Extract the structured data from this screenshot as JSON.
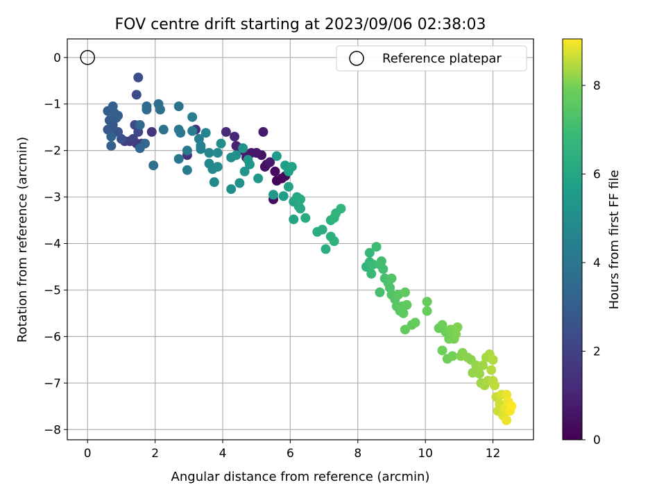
{
  "chart_data": {
    "type": "scatter",
    "title": "FOV centre drift starting at 2023/09/06 02:38:03",
    "xlabel": "Angular distance from reference (arcmin)",
    "ylabel": "Rotation from reference (arcmin)",
    "xlim": [
      -0.6,
      13.2
    ],
    "ylim": [
      -8.22,
      0.4
    ],
    "x_ticks": [
      0,
      2,
      4,
      6,
      8,
      10,
      12
    ],
    "y_ticks": [
      0,
      -1,
      -2,
      -3,
      -4,
      -5,
      -6,
      -7,
      -8
    ],
    "grid": true,
    "legend": {
      "placement": "top-right",
      "entries": [
        "Reference platepar"
      ]
    },
    "reference_point": {
      "x": 0,
      "y": 0
    },
    "colorbar": {
      "label": "Hours from first FF file",
      "colormap": "viridis",
      "range": [
        0,
        9.05
      ],
      "ticks": [
        0,
        2,
        4,
        6,
        8
      ]
    },
    "points": [
      {
        "x": 5.75,
        "y": -2.6,
        "h": 0.1
      },
      {
        "x": 5.6,
        "y": -2.65,
        "h": 0.15
      },
      {
        "x": 5.85,
        "y": -2.55,
        "h": 0.2
      },
      {
        "x": 5.5,
        "y": -3.05,
        "h": 0.3
      },
      {
        "x": 5.55,
        "y": -2.45,
        "h": 0.35
      },
      {
        "x": 5.3,
        "y": -2.3,
        "h": 0.4
      },
      {
        "x": 5.25,
        "y": -2.35,
        "h": 0.45
      },
      {
        "x": 5.15,
        "y": -2.1,
        "h": 0.5
      },
      {
        "x": 4.7,
        "y": -2.15,
        "h": 0.55
      },
      {
        "x": 4.85,
        "y": -2.05,
        "h": 0.6
      },
      {
        "x": 5.0,
        "y": -2.05,
        "h": 0.65
      },
      {
        "x": 5.4,
        "y": -2.25,
        "h": 0.7
      },
      {
        "x": 5.2,
        "y": -1.6,
        "h": 0.75
      },
      {
        "x": 4.6,
        "y": -2.0,
        "h": 0.8
      },
      {
        "x": 4.4,
        "y": -1.9,
        "h": 0.9
      },
      {
        "x": 4.5,
        "y": -1.95,
        "h": 1.0
      },
      {
        "x": 4.35,
        "y": -1.7,
        "h": 1.1
      },
      {
        "x": 4.1,
        "y": -1.6,
        "h": 1.2
      },
      {
        "x": 2.95,
        "y": -2.1,
        "h": 1.3
      },
      {
        "x": 3.2,
        "y": -1.55,
        "h": 1.4
      },
      {
        "x": 1.9,
        "y": -1.6,
        "h": 1.5
      },
      {
        "x": 1.6,
        "y": -1.85,
        "h": 1.6
      },
      {
        "x": 1.45,
        "y": -1.85,
        "h": 1.7
      },
      {
        "x": 1.25,
        "y": -1.8,
        "h": 1.8
      },
      {
        "x": 1.1,
        "y": -1.8,
        "h": 1.9
      },
      {
        "x": 1.35,
        "y": -1.75,
        "h": 2.0
      },
      {
        "x": 1.5,
        "y": -1.6,
        "h": 2.1
      },
      {
        "x": 1.4,
        "y": -1.45,
        "h": 2.2
      },
      {
        "x": 1.45,
        "y": -0.8,
        "h": 2.3
      },
      {
        "x": 1.5,
        "y": -0.43,
        "h": 2.4
      },
      {
        "x": 1.0,
        "y": -1.75,
        "h": 2.5
      },
      {
        "x": 0.9,
        "y": -1.6,
        "h": 2.6
      },
      {
        "x": 0.7,
        "y": -1.55,
        "h": 2.7
      },
      {
        "x": 0.6,
        "y": -1.55,
        "h": 2.75
      },
      {
        "x": 0.75,
        "y": -1.45,
        "h": 2.8
      },
      {
        "x": 0.65,
        "y": -1.35,
        "h": 2.85
      },
      {
        "x": 0.85,
        "y": -1.3,
        "h": 2.9
      },
      {
        "x": 0.6,
        "y": -1.15,
        "h": 2.95
      },
      {
        "x": 0.8,
        "y": -1.2,
        "h": 3.0
      },
      {
        "x": 0.9,
        "y": -1.25,
        "h": 3.05
      },
      {
        "x": 0.75,
        "y": -1.05,
        "h": 3.1
      },
      {
        "x": 0.7,
        "y": -1.9,
        "h": 3.15
      },
      {
        "x": 0.7,
        "y": -1.7,
        "h": 3.2
      },
      {
        "x": 1.55,
        "y": -1.95,
        "h": 3.3
      },
      {
        "x": 1.7,
        "y": -1.85,
        "h": 3.35
      },
      {
        "x": 1.55,
        "y": -1.45,
        "h": 3.4
      },
      {
        "x": 1.75,
        "y": -1.05,
        "h": 3.5
      },
      {
        "x": 1.75,
        "y": -1.12,
        "h": 3.55
      },
      {
        "x": 2.1,
        "y": -1.0,
        "h": 3.6
      },
      {
        "x": 2.15,
        "y": -1.12,
        "h": 3.7
      },
      {
        "x": 1.95,
        "y": -2.32,
        "h": 3.75
      },
      {
        "x": 2.25,
        "y": -1.55,
        "h": 3.8
      },
      {
        "x": 2.7,
        "y": -1.05,
        "h": 3.9
      },
      {
        "x": 2.7,
        "y": -1.55,
        "h": 4.0
      },
      {
        "x": 2.75,
        "y": -1.62,
        "h": 4.05
      },
      {
        "x": 2.7,
        "y": -2.18,
        "h": 4.1
      },
      {
        "x": 2.95,
        "y": -2.0,
        "h": 4.15
      },
      {
        "x": 2.95,
        "y": -2.42,
        "h": 4.2
      },
      {
        "x": 3.1,
        "y": -1.28,
        "h": 4.3
      },
      {
        "x": 3.1,
        "y": -1.58,
        "h": 4.35
      },
      {
        "x": 3.3,
        "y": -1.75,
        "h": 4.4
      },
      {
        "x": 3.35,
        "y": -1.9,
        "h": 4.45
      },
      {
        "x": 3.35,
        "y": -1.97,
        "h": 4.5
      },
      {
        "x": 3.5,
        "y": -1.62,
        "h": 4.6
      },
      {
        "x": 3.6,
        "y": -2.05,
        "h": 4.65
      },
      {
        "x": 3.6,
        "y": -2.28,
        "h": 4.7
      },
      {
        "x": 3.7,
        "y": -2.4,
        "h": 4.75
      },
      {
        "x": 3.75,
        "y": -2.68,
        "h": 4.8
      },
      {
        "x": 3.85,
        "y": -2.05,
        "h": 4.85
      },
      {
        "x": 3.85,
        "y": -2.35,
        "h": 4.9
      },
      {
        "x": 3.95,
        "y": -1.85,
        "h": 4.95
      },
      {
        "x": 4.25,
        "y": -2.15,
        "h": 5.0
      },
      {
        "x": 4.25,
        "y": -2.83,
        "h": 5.05
      },
      {
        "x": 4.4,
        "y": -2.1,
        "h": 5.1
      },
      {
        "x": 4.5,
        "y": -2.7,
        "h": 5.15
      },
      {
        "x": 4.6,
        "y": -1.95,
        "h": 5.2
      },
      {
        "x": 4.65,
        "y": -2.45,
        "h": 5.25
      },
      {
        "x": 4.75,
        "y": -2.2,
        "h": 5.3
      },
      {
        "x": 4.8,
        "y": -2.3,
        "h": 5.35
      },
      {
        "x": 5.05,
        "y": -2.6,
        "h": 5.4
      },
      {
        "x": 5.5,
        "y": -2.95,
        "h": 5.45
      },
      {
        "x": 5.6,
        "y": -2.12,
        "h": 5.55
      },
      {
        "x": 5.8,
        "y": -2.98,
        "h": 5.65
      },
      {
        "x": 5.85,
        "y": -2.32,
        "h": 5.7
      },
      {
        "x": 5.95,
        "y": -2.45,
        "h": 5.75
      },
      {
        "x": 5.95,
        "y": -2.78,
        "h": 5.8
      },
      {
        "x": 6.05,
        "y": -2.35,
        "h": 5.85
      },
      {
        "x": 6.1,
        "y": -3.1,
        "h": 5.9
      },
      {
        "x": 6.1,
        "y": -3.48,
        "h": 5.95
      },
      {
        "x": 6.2,
        "y": -3.0,
        "h": 6.0
      },
      {
        "x": 6.25,
        "y": -3.2,
        "h": 6.05
      },
      {
        "x": 6.3,
        "y": -3.25,
        "h": 6.1
      },
      {
        "x": 6.3,
        "y": -3.05,
        "h": 6.15
      },
      {
        "x": 6.45,
        "y": -3.45,
        "h": 6.2
      },
      {
        "x": 6.8,
        "y": -3.75,
        "h": 6.25
      },
      {
        "x": 6.95,
        "y": -3.7,
        "h": 6.3
      },
      {
        "x": 7.05,
        "y": -4.12,
        "h": 6.35
      },
      {
        "x": 7.2,
        "y": -3.5,
        "h": 6.4
      },
      {
        "x": 7.2,
        "y": -3.85,
        "h": 6.45
      },
      {
        "x": 7.3,
        "y": -3.95,
        "h": 6.5
      },
      {
        "x": 7.3,
        "y": -3.45,
        "h": 6.55
      },
      {
        "x": 7.35,
        "y": -3.35,
        "h": 6.6
      },
      {
        "x": 7.5,
        "y": -3.25,
        "h": 6.65
      },
      {
        "x": 8.25,
        "y": -4.5,
        "h": 6.7
      },
      {
        "x": 8.35,
        "y": -4.4,
        "h": 6.75
      },
      {
        "x": 8.35,
        "y": -4.2,
        "h": 6.8
      },
      {
        "x": 8.4,
        "y": -4.65,
        "h": 6.85
      },
      {
        "x": 8.45,
        "y": -4.45,
        "h": 6.9
      },
      {
        "x": 8.55,
        "y": -4.07,
        "h": 6.95
      },
      {
        "x": 8.65,
        "y": -4.45,
        "h": 7.0
      },
      {
        "x": 8.7,
        "y": -4.38,
        "h": 7.05
      },
      {
        "x": 8.75,
        "y": -4.55,
        "h": 7.1
      },
      {
        "x": 8.65,
        "y": -5.05,
        "h": 7.15
      },
      {
        "x": 8.8,
        "y": -4.75,
        "h": 7.2
      },
      {
        "x": 8.9,
        "y": -4.85,
        "h": 7.25
      },
      {
        "x": 8.95,
        "y": -4.95,
        "h": 7.3
      },
      {
        "x": 9.0,
        "y": -5.1,
        "h": 7.35
      },
      {
        "x": 9.0,
        "y": -4.75,
        "h": 7.4
      },
      {
        "x": 9.1,
        "y": -5.2,
        "h": 7.45
      },
      {
        "x": 9.15,
        "y": -5.35,
        "h": 7.5
      },
      {
        "x": 9.2,
        "y": -5.1,
        "h": 7.55
      },
      {
        "x": 9.25,
        "y": -5.45,
        "h": 7.55
      },
      {
        "x": 9.3,
        "y": -5.35,
        "h": 7.6
      },
      {
        "x": 9.35,
        "y": -5.5,
        "h": 7.6
      },
      {
        "x": 9.4,
        "y": -5.05,
        "h": 7.65
      },
      {
        "x": 9.45,
        "y": -5.32,
        "h": 7.65
      },
      {
        "x": 9.4,
        "y": -5.85,
        "h": 7.7
      },
      {
        "x": 9.6,
        "y": -5.75,
        "h": 7.7
      },
      {
        "x": 9.7,
        "y": -5.7,
        "h": 7.75
      },
      {
        "x": 10.05,
        "y": -5.25,
        "h": 7.75
      },
      {
        "x": 10.05,
        "y": -5.45,
        "h": 7.8
      },
      {
        "x": 10.4,
        "y": -5.82,
        "h": 7.8
      },
      {
        "x": 10.5,
        "y": -5.75,
        "h": 7.85
      },
      {
        "x": 10.6,
        "y": -5.9,
        "h": 7.85
      },
      {
        "x": 10.5,
        "y": -6.3,
        "h": 7.9
      },
      {
        "x": 10.65,
        "y": -6.48,
        "h": 7.9
      },
      {
        "x": 10.7,
        "y": -6.05,
        "h": 7.95
      },
      {
        "x": 10.8,
        "y": -6.42,
        "h": 7.95
      },
      {
        "x": 10.75,
        "y": -5.85,
        "h": 8.0
      },
      {
        "x": 10.85,
        "y": -6.05,
        "h": 8.0
      },
      {
        "x": 10.9,
        "y": -5.95,
        "h": 8.05
      },
      {
        "x": 10.95,
        "y": -5.8,
        "h": 8.05
      },
      {
        "x": 11.05,
        "y": -6.42,
        "h": 8.1
      },
      {
        "x": 11.1,
        "y": -6.35,
        "h": 8.1
      },
      {
        "x": 11.25,
        "y": -6.45,
        "h": 8.15
      },
      {
        "x": 11.35,
        "y": -6.5,
        "h": 8.15
      },
      {
        "x": 11.4,
        "y": -6.78,
        "h": 8.2
      },
      {
        "x": 11.5,
        "y": -6.62,
        "h": 8.2
      },
      {
        "x": 11.55,
        "y": -6.75,
        "h": 8.25
      },
      {
        "x": 11.6,
        "y": -6.8,
        "h": 8.25
      },
      {
        "x": 11.65,
        "y": -7.0,
        "h": 8.3
      },
      {
        "x": 11.7,
        "y": -6.62,
        "h": 8.3
      },
      {
        "x": 11.75,
        "y": -7.05,
        "h": 8.35
      },
      {
        "x": 11.8,
        "y": -6.45,
        "h": 8.35
      },
      {
        "x": 11.85,
        "y": -6.95,
        "h": 8.4
      },
      {
        "x": 11.9,
        "y": -6.38,
        "h": 8.4
      },
      {
        "x": 11.95,
        "y": -6.72,
        "h": 8.45
      },
      {
        "x": 12.0,
        "y": -6.5,
        "h": 8.45
      },
      {
        "x": 12.0,
        "y": -6.95,
        "h": 8.5
      },
      {
        "x": 12.05,
        "y": -7.05,
        "h": 8.55
      },
      {
        "x": 12.1,
        "y": -7.3,
        "h": 8.6
      },
      {
        "x": 12.15,
        "y": -7.6,
        "h": 8.65
      },
      {
        "x": 12.2,
        "y": -7.45,
        "h": 8.7
      },
      {
        "x": 12.25,
        "y": -7.25,
        "h": 8.75
      },
      {
        "x": 12.3,
        "y": -7.7,
        "h": 8.8
      },
      {
        "x": 12.35,
        "y": -7.55,
        "h": 8.85
      },
      {
        "x": 12.4,
        "y": -7.8,
        "h": 8.9
      },
      {
        "x": 12.4,
        "y": -7.25,
        "h": 8.9
      },
      {
        "x": 12.45,
        "y": -7.4,
        "h": 8.95
      },
      {
        "x": 12.5,
        "y": -7.6,
        "h": 9.0
      },
      {
        "x": 12.55,
        "y": -7.5,
        "h": 9.05
      }
    ]
  }
}
